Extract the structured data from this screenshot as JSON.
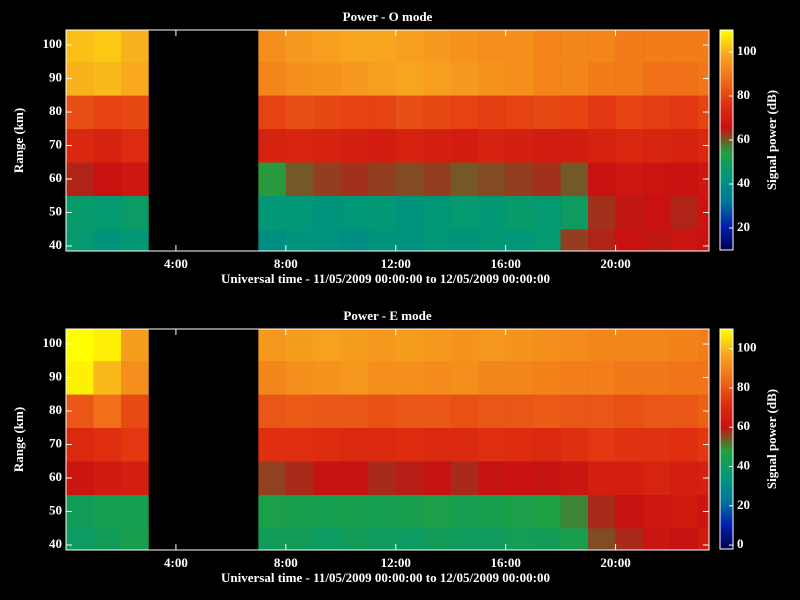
{
  "chart_data": [
    {
      "type": "heatmap",
      "title": "Power - O mode",
      "xlabel": "Universal time - 11/05/2009 00:00:00 to 12/05/2009 00:00:00",
      "ylabel": "Range (km)",
      "colorbar_label": "Signal power (dB)",
      "x_bins": [
        0,
        1,
        2,
        3,
        4,
        5,
        6,
        7,
        8,
        9,
        10,
        11,
        12,
        13,
        14,
        15,
        16,
        17,
        18,
        19,
        20,
        21,
        22,
        23,
        23.4
      ],
      "y_bins": [
        38.5,
        45,
        55,
        65,
        75,
        85,
        95,
        104.5
      ],
      "xlim": [
        0,
        23.4
      ],
      "ylim": [
        38.5,
        104.5
      ],
      "xticks": [
        {
          "value": 4,
          "label": "4:00"
        },
        {
          "value": 8,
          "label": "8:00"
        },
        {
          "value": 12,
          "label": "12:00"
        },
        {
          "value": 16,
          "label": "16:00"
        },
        {
          "value": 20,
          "label": "20:00"
        }
      ],
      "yticks": [
        40,
        50,
        60,
        70,
        80,
        90,
        100
      ],
      "zlim": [
        10,
        110
      ],
      "zticks": [
        20,
        40,
        60,
        80,
        100
      ],
      "colormap": [
        "#000050",
        "#0020b0",
        "#007898",
        "#009878",
        "#20a040",
        "#c81010",
        "#e03010",
        "#f07018",
        "#f8a820",
        "#ffff00"
      ],
      "values": [
        [
          45,
          42,
          44,
          null,
          null,
          null,
          null,
          40,
          42,
          41,
          40,
          42,
          41,
          43,
          42,
          44,
          43,
          45,
          62,
          64,
          66,
          65,
          67,
          66
        ],
        [
          46,
          45,
          47,
          null,
          null,
          null,
          null,
          44,
          43,
          42,
          43,
          44,
          42,
          43,
          45,
          44,
          46,
          45,
          48,
          63,
          65,
          66,
          64,
          67
        ],
        [
          64,
          66,
          68,
          null,
          null,
          null,
          null,
          55,
          60,
          62,
          63,
          62,
          61,
          62,
          60,
          61,
          62,
          63,
          60,
          66,
          68,
          67,
          66,
          68
        ],
        [
          74,
          72,
          75,
          null,
          null,
          null,
          null,
          72,
          73,
          72,
          71,
          70,
          72,
          71,
          70,
          72,
          71,
          70,
          70,
          72,
          74,
          73,
          72,
          74
        ],
        [
          82,
          80,
          81,
          null,
          null,
          null,
          null,
          80,
          82,
          81,
          80,
          80,
          82,
          81,
          80,
          79,
          80,
          81,
          80,
          78,
          80,
          79,
          78,
          80
        ],
        [
          100,
          101,
          99,
          null,
          null,
          null,
          null,
          92,
          94,
          95,
          96,
          97,
          98,
          97,
          96,
          95,
          94,
          92,
          92,
          90,
          90,
          88,
          88,
          89
        ],
        [
          102,
          103,
          100,
          null,
          null,
          null,
          null,
          94,
          96,
          97,
          98,
          98,
          97,
          96,
          95,
          94,
          94,
          92,
          92,
          92,
          90,
          90,
          90,
          90
        ]
      ]
    },
    {
      "type": "heatmap",
      "title": "Power - E mode",
      "xlabel": "Universal time - 11/05/2009 00:00:00 to 12/05/2009 00:00:00",
      "ylabel": "Range (km)",
      "colorbar_label": "Signal power (dB)",
      "x_bins": [
        0,
        1,
        2,
        3,
        4,
        5,
        6,
        7,
        8,
        9,
        10,
        11,
        12,
        13,
        14,
        15,
        16,
        17,
        18,
        19,
        20,
        21,
        22,
        23,
        23.4
      ],
      "y_bins": [
        38.5,
        45,
        55,
        65,
        75,
        85,
        95,
        104.5
      ],
      "xlim": [
        0,
        23.4
      ],
      "ylim": [
        38.5,
        104.5
      ],
      "xticks": [
        {
          "value": 4,
          "label": "4:00"
        },
        {
          "value": 8,
          "label": "8:00"
        },
        {
          "value": 12,
          "label": "12:00"
        },
        {
          "value": 16,
          "label": "16:00"
        },
        {
          "value": 20,
          "label": "20:00"
        }
      ],
      "yticks": [
        40,
        50,
        60,
        70,
        80,
        90,
        100
      ],
      "zlim": [
        -2,
        110
      ],
      "zticks": [
        0,
        20,
        40,
        60,
        80,
        100
      ],
      "colormap": [
        "#000050",
        "#0020b0",
        "#007898",
        "#009878",
        "#20a040",
        "#c81010",
        "#e03010",
        "#f07018",
        "#f8a820",
        "#ffff00"
      ],
      "values": [
        [
          40,
          42,
          45,
          null,
          null,
          null,
          null,
          42,
          42,
          40,
          42,
          41,
          40,
          42,
          41,
          41,
          43,
          42,
          45,
          55,
          58,
          62,
          60,
          64
        ],
        [
          42,
          44,
          44,
          null,
          null,
          null,
          null,
          46,
          45,
          44,
          45,
          44,
          45,
          46,
          44,
          45,
          46,
          47,
          50,
          58,
          60,
          63,
          64,
          62
        ],
        [
          62,
          64,
          66,
          null,
          null,
          null,
          null,
          56,
          58,
          60,
          60,
          58,
          59,
          60,
          58,
          60,
          61,
          60,
          62,
          66,
          66,
          68,
          66,
          67
        ],
        [
          70,
          72,
          74,
          null,
          null,
          null,
          null,
          72,
          72,
          71,
          70,
          70,
          71,
          70,
          70,
          72,
          71,
          70,
          72,
          74,
          73,
          73,
          72,
          74
        ],
        [
          80,
          85,
          78,
          null,
          null,
          null,
          null,
          80,
          81,
          80,
          80,
          79,
          80,
          80,
          79,
          80,
          80,
          81,
          80,
          80,
          79,
          80,
          80,
          82
        ],
        [
          108,
          100,
          92,
          null,
          null,
          null,
          null,
          90,
          92,
          93,
          94,
          92,
          92,
          91,
          92,
          90,
          90,
          89,
          88,
          88,
          87,
          87,
          86,
          86
        ],
        [
          110,
          108,
          95,
          null,
          null,
          null,
          null,
          94,
          95,
          96,
          95,
          94,
          95,
          94,
          93,
          94,
          93,
          92,
          91,
          90,
          90,
          90,
          89,
          88
        ]
      ]
    }
  ]
}
